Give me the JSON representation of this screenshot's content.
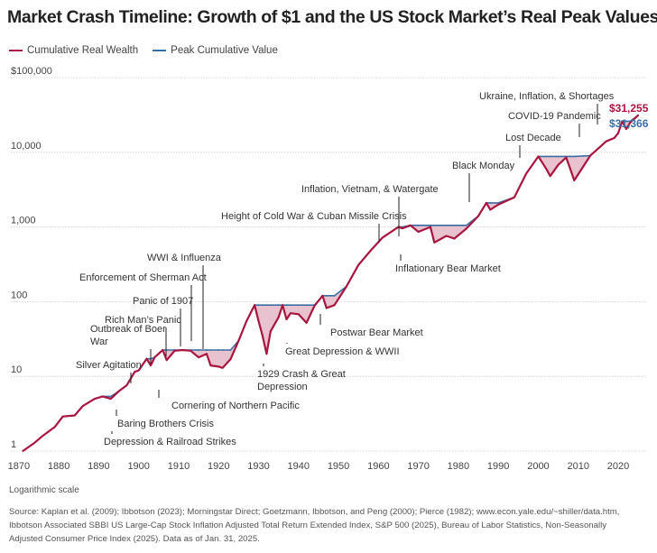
{
  "title": "Market Crash Timeline: Growth of $1 and the US Stock Market’s Real Peak Values",
  "legend": {
    "wealth_label": "Cumulative Real Wealth",
    "peak_label": "Peak Cumulative Value"
  },
  "colors": {
    "wealth": "#a8153f",
    "peak": "#3a6ea5",
    "fill": "#e8c2ce",
    "grid": "#cccccc"
  },
  "note": "Logarithmic scale",
  "source": "Source: Kaplan et al. (2009); Ibbotson (2023); Morningstar Direct; Goetzmann, Ibbotson, and Peng (2000); Pierce (1982); www.econ.yale.edu/~shiller/data.htm, Ibbotson Associated SBBI US Large-Cap Stock Inflation Adjusted Total Return Extended Index, S&P 500 (2025), Bureau of Labor Statistics, Non-Seasonally Adjusted Consumer Price Index (2025). Data as of Jan. 31, 2025.",
  "chart_data": {
    "type": "line",
    "title": "Market Crash Timeline: Growth of $1 and the US Stock Market’s Real Peak Values",
    "xlabel": "",
    "ylabel": "",
    "yscale": "log",
    "grid": true,
    "legend_position": "top-left",
    "xlim": [
      1868,
      2027
    ],
    "ylim": [
      1,
      100000
    ],
    "x_ticks": [
      1870,
      1880,
      1890,
      1900,
      1910,
      1920,
      1930,
      1940,
      1950,
      1960,
      1970,
      1980,
      1990,
      2000,
      2010,
      2020
    ],
    "y_ticks": [
      {
        "value": 1,
        "label": "1"
      },
      {
        "value": 10,
        "label": "10"
      },
      {
        "value": 100,
        "label": "100"
      },
      {
        "value": 1000,
        "label": "1,000"
      },
      {
        "value": 10000,
        "label": "10,000"
      },
      {
        "value": 100000,
        "label": "$100,000"
      }
    ],
    "series": [
      {
        "name": "Cumulative Real Wealth",
        "x": [
          1871,
          1874,
          1876,
          1879,
          1881,
          1884,
          1886,
          1889,
          1891,
          1893,
          1895,
          1897,
          1899,
          1900,
          1902,
          1903,
          1904,
          1906,
          1907,
          1909,
          1911,
          1913,
          1915,
          1917,
          1918,
          1920,
          1921,
          1923,
          1925,
          1927,
          1929,
          1930,
          1931,
          1932,
          1933,
          1935,
          1936,
          1937,
          1938,
          1940,
          1942,
          1944,
          1946,
          1947,
          1949,
          1952,
          1955,
          1958,
          1961,
          1965,
          1966,
          1968,
          1970,
          1973,
          1974,
          1977,
          1979,
          1982,
          1985,
          1987,
          1988,
          1990,
          1994,
          1997,
          2000,
          2002,
          2003,
          2005,
          2007,
          2008,
          2009,
          2013,
          2017,
          2019,
          2020,
          2021,
          2022,
          2023,
          2025
        ],
        "y": [
          1.0,
          1.3,
          1.6,
          2.1,
          2.9,
          3.0,
          4.0,
          5.0,
          5.4,
          5.0,
          6.3,
          7.6,
          11.5,
          12.0,
          17.2,
          14.0,
          18.0,
          22.5,
          16.5,
          22.0,
          22.5,
          22.0,
          18.0,
          20.0,
          14.0,
          13.5,
          13.0,
          17.0,
          30.0,
          55.0,
          90.0,
          55.0,
          35.0,
          20.0,
          40.0,
          62.0,
          90.0,
          58.0,
          70.0,
          68.0,
          52.0,
          88.0,
          120.0,
          82.0,
          90.0,
          160.0,
          310.0,
          480.0,
          720.0,
          1000.0,
          960.0,
          1050.0,
          860.0,
          1000.0,
          620.0,
          760.0,
          700.0,
          950.0,
          1400.0,
          2100.0,
          1700.0,
          2000.0,
          2500.0,
          5200.0,
          8800.0,
          6000.0,
          4800.0,
          6800.0,
          8500.0,
          6000.0,
          4200.0,
          9000.0,
          14000.0,
          15500.0,
          18000.0,
          26000.0,
          20500.0,
          25000.0,
          31255.0
        ]
      },
      {
        "name": "Peak Cumulative Value",
        "x": [
          1871,
          1874,
          1876,
          1879,
          1881,
          1884,
          1886,
          1889,
          1891,
          1893,
          1895,
          1897,
          1899,
          1900,
          1902,
          1903,
          1904,
          1906,
          1907,
          1909,
          1911,
          1913,
          1915,
          1917,
          1918,
          1920,
          1921,
          1923,
          1925,
          1927,
          1929,
          1930,
          1931,
          1932,
          1933,
          1935,
          1936,
          1937,
          1938,
          1940,
          1942,
          1944,
          1946,
          1947,
          1949,
          1952,
          1955,
          1958,
          1961,
          1965,
          1966,
          1968,
          1970,
          1973,
          1974,
          1977,
          1979,
          1982,
          1985,
          1987,
          1988,
          1990,
          1994,
          1997,
          2000,
          2002,
          2003,
          2005,
          2007,
          2008,
          2009,
          2013,
          2017,
          2019,
          2020,
          2021,
          2022,
          2023,
          2025
        ],
        "y": [
          1.0,
          1.3,
          1.6,
          2.1,
          2.9,
          3.0,
          4.0,
          5.0,
          5.4,
          5.4,
          6.3,
          7.6,
          11.5,
          12.0,
          17.2,
          17.2,
          18.0,
          22.5,
          22.5,
          22.5,
          22.5,
          22.5,
          22.5,
          22.5,
          22.5,
          22.5,
          22.5,
          22.5,
          30.0,
          55.0,
          90.0,
          90.0,
          90.0,
          90.0,
          90.0,
          90.0,
          90.0,
          90.0,
          90.0,
          90.0,
          90.0,
          90.0,
          120.0,
          120.0,
          120.0,
          160.0,
          310.0,
          480.0,
          720.0,
          1000.0,
          1000.0,
          1050.0,
          1050.0,
          1050.0,
          1050.0,
          1050.0,
          1050.0,
          1050.0,
          1400.0,
          2100.0,
          2100.0,
          2100.0,
          2500.0,
          5200.0,
          8800.0,
          8800.0,
          8800.0,
          8800.0,
          8800.0,
          8800.0,
          8800.0,
          9000.0,
          14000.0,
          15500.0,
          18000.0,
          26000.0,
          26000.0,
          26000.0,
          31366.0
        ]
      }
    ],
    "end_labels": [
      {
        "series": "Cumulative Real Wealth",
        "text": "$31,255"
      },
      {
        "series": "Peak Cumulative Value",
        "text": "$31,366"
      }
    ],
    "annotations": [
      {
        "lines": [
          "Depression & Railroad Strikes"
        ],
        "x": 1873.5,
        "y": 1.25
      },
      {
        "lines": [
          "Baring Brothers Crisis"
        ],
        "x": 1890.5,
        "y": 5.0
      },
      {
        "lines": [
          "Silver Agitation"
        ],
        "x": 1893,
        "y": 5.2
      },
      {
        "lines": [
          "Cornering of Northern Pacific"
        ],
        "x": 1901,
        "y": 14.5
      },
      {
        "lines": [
          "Outbreak of Boer",
          "War"
        ],
        "x": 1899.5,
        "y": 11.5
      },
      {
        "lines": [
          "Rich Man’s Panic"
        ],
        "x": 1903,
        "y": 14.5
      },
      {
        "lines": [
          "Panic of 1907"
        ],
        "x": 1907,
        "y": 17.0
      },
      {
        "lines": [
          "Enforcement of Sherman Act"
        ],
        "x": 1911,
        "y": 22.0
      },
      {
        "lines": [
          "WWI & Influenza"
        ],
        "x": 1917,
        "y": 20.0
      },
      {
        "lines": [
          "1929 Crash & Great",
          "Depression"
        ],
        "x": 1932,
        "y": 20.0
      },
      {
        "lines": [
          "Great Depression & WWII"
        ],
        "x": 1938,
        "y": 58.0
      },
      {
        "lines": [
          "Postwar Bear Market"
        ],
        "x": 1946.5,
        "y": 95.0
      },
      {
        "lines": [
          "Height of Cold War & Cuban Missile Crisis"
        ],
        "x": 1962,
        "y": 760.0
      },
      {
        "lines": [
          "Inflation, Vietnam, & Watergate"
        ],
        "x": 1973.5,
        "y": 950.0
      },
      {
        "lines": [
          "Inflationary Bear Market"
        ],
        "x": 1979,
        "y": 700.0
      },
      {
        "lines": [
          "Black Monday"
        ],
        "x": 1987.8,
        "y": 1700.0
      },
      {
        "lines": [
          "Lost Decade"
        ],
        "x": 2002,
        "y": 8800.0
      },
      {
        "lines": [
          "COVID-19 Pandemic"
        ],
        "x": 2020.2,
        "y": 17000.0
      },
      {
        "lines": [
          "Ukraine, Inflation, & Shortages"
        ],
        "x": 2022,
        "y": 20500.0
      }
    ]
  }
}
